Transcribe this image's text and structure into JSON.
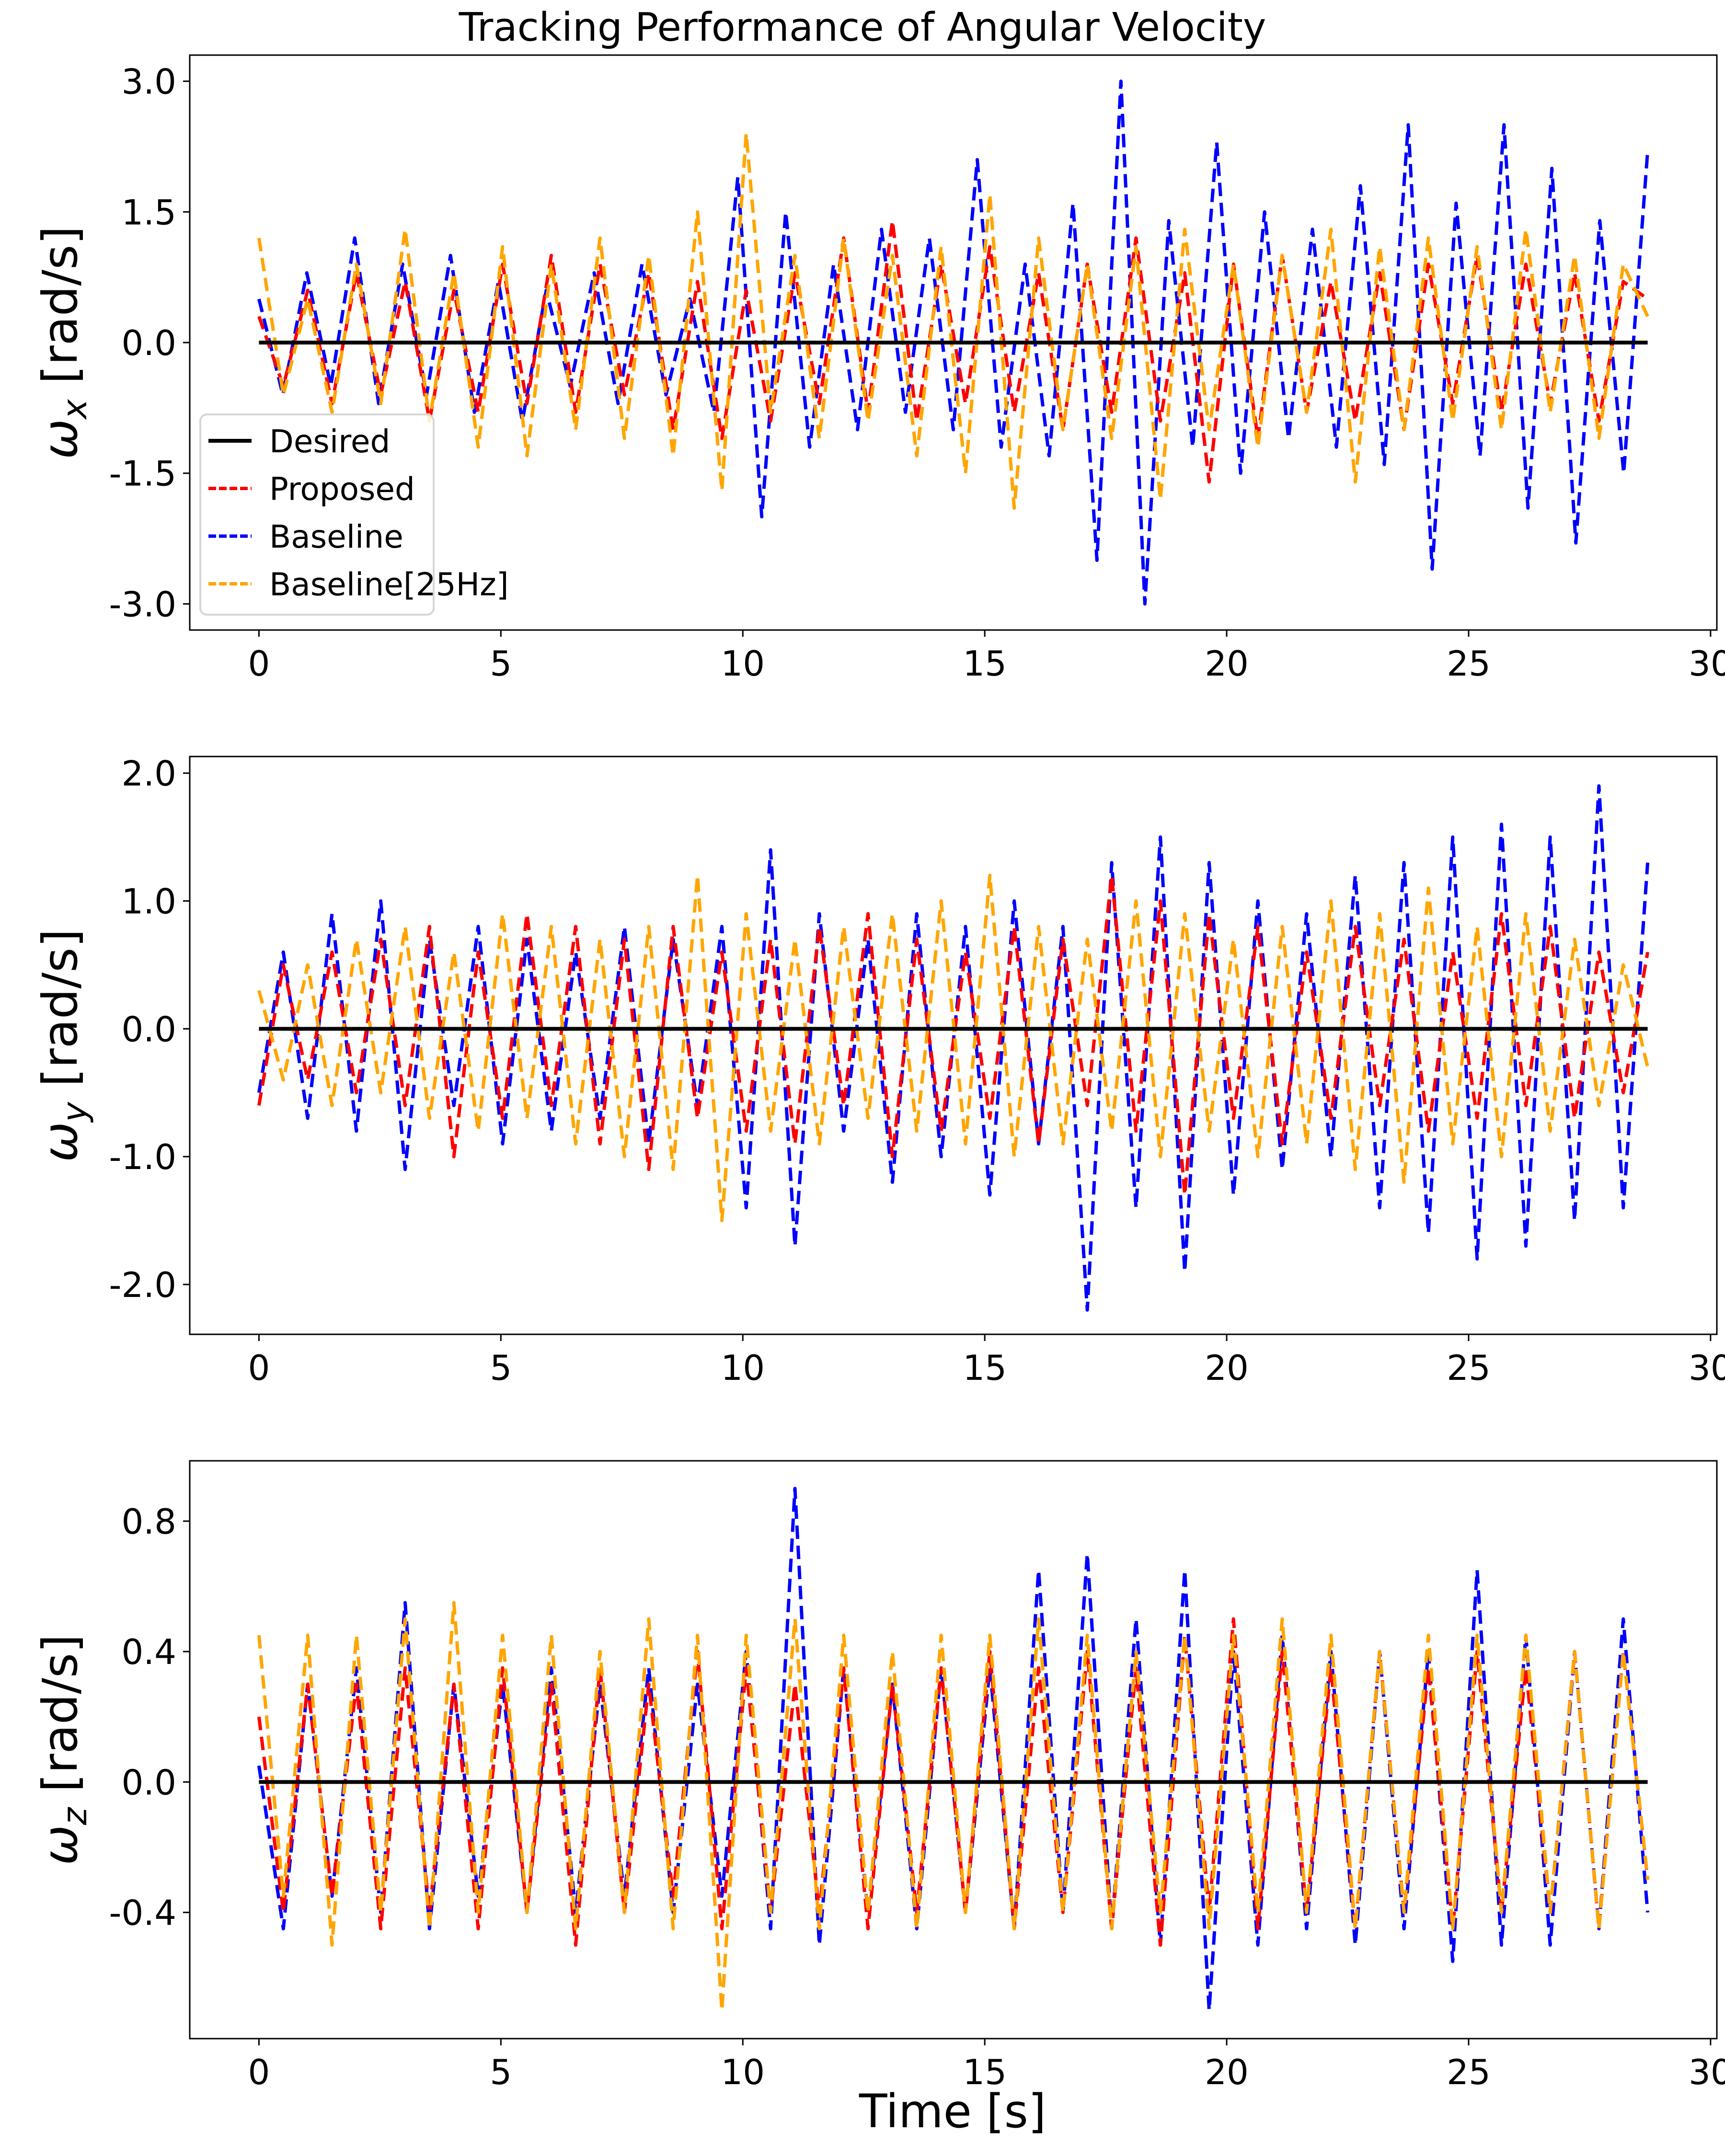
{
  "chart_data": {
    "type": "line",
    "title": "Tracking Performance of Angular Velocity",
    "xlabel": "Time [s]",
    "x_step": 0.5,
    "x_start": 0,
    "xlim": [
      -1.43,
      30.13
    ],
    "xticks": [
      0,
      5,
      10,
      15,
      20,
      25,
      30
    ],
    "grid": false,
    "legend": {
      "placement": "lower-left of first subplot",
      "entries": [
        "Desired",
        "Proposed",
        "Baseline",
        "Baseline[25Hz]"
      ]
    },
    "colors": {
      "Desired": "#000000",
      "Proposed": "#ff0000",
      "Baseline": "#0000ff",
      "Baseline[25Hz]": "#ffa500"
    },
    "subplots": [
      {
        "ylabel": "ω_x [rad/s]",
        "ylabel_main": "ω",
        "ylabel_sub": "x",
        "ylabel_unit": " [rad/s]",
        "ylim": [
          -3.3,
          3.3
        ],
        "yticks": [
          3.0,
          1.5,
          0.0,
          -1.5,
          -3.0
        ],
        "ytick_labels": [
          "3.0",
          "1.5",
          "0.0",
          "-1.5",
          "-3.0"
        ],
        "series": [
          {
            "name": "Desired",
            "values": [
              0,
              0
            ]
          },
          {
            "name": "Proposed",
            "values": [
              0.3,
              -0.5,
              0.6,
              -0.7,
              0.8,
              -0.6,
              0.7,
              -0.9,
              0.6,
              -0.8,
              0.9,
              -0.7,
              1.0,
              -0.8,
              0.9,
              -0.6,
              0.8,
              -1.0,
              0.7,
              -1.1,
              0.6,
              -0.9,
              0.8,
              -0.7,
              1.2,
              -0.8,
              1.4,
              -0.9,
              0.9,
              -0.7,
              1.1,
              -0.8,
              0.8,
              -1.0,
              0.9,
              -0.8,
              1.2,
              -0.9,
              0.8,
              -1.6,
              0.9,
              -1.1,
              1.0,
              -0.8,
              0.7,
              -0.9,
              0.8,
              -1.0,
              0.9,
              -0.7,
              1.0,
              -0.8,
              0.9,
              -0.7,
              0.8,
              -0.9,
              0.7,
              0.5
            ]
          },
          {
            "name": "Baseline",
            "values": [
              0.5,
              -0.6,
              0.8,
              -0.5,
              1.2,
              -0.7,
              0.9,
              -0.6,
              1.0,
              -0.8,
              0.7,
              -0.9,
              0.6,
              -0.5,
              0.8,
              -0.7,
              0.9,
              -0.6,
              0.5,
              -0.8,
              1.9,
              -2.0,
              1.5,
              -1.2,
              0.9,
              -1.0,
              1.3,
              -0.8,
              1.2,
              -1.0,
              2.1,
              -1.2,
              0.9,
              -1.3,
              1.6,
              -2.5,
              3.0,
              -3.0,
              1.4,
              -1.2,
              2.3,
              -1.5,
              1.5,
              -1.1,
              1.3,
              -1.2,
              1.8,
              -1.4,
              2.5,
              -2.6,
              1.6,
              -1.3,
              2.5,
              -1.9,
              2.0,
              -2.3,
              1.4,
              -1.5,
              2.2
            ]
          },
          {
            "name": "Baseline[25Hz]",
            "values": [
              1.2,
              -0.6,
              0.5,
              -0.8,
              0.9,
              -0.7,
              1.3,
              -0.9,
              0.8,
              -1.2,
              1.1,
              -1.3,
              0.9,
              -1.0,
              1.2,
              -1.1,
              1.0,
              -1.3,
              1.5,
              -1.7,
              2.4,
              -0.8,
              1.0,
              -1.1,
              1.2,
              -0.9,
              1.0,
              -1.3,
              1.1,
              -1.5,
              1.7,
              -1.9,
              1.2,
              -1.0,
              0.9,
              -1.1,
              1.1,
              -1.8,
              1.3,
              -1.0,
              0.9,
              -1.2,
              1.0,
              -0.8,
              1.3,
              -1.6,
              1.1,
              -1.0,
              1.2,
              -0.9,
              1.1,
              -1.0,
              1.3,
              -0.8,
              1.0,
              -1.1,
              0.9,
              0.3
            ]
          }
        ]
      },
      {
        "ylabel": "ω_y [rad/s]",
        "ylabel_main": "ω",
        "ylabel_sub": "y",
        "ylabel_unit": " [rad/s]",
        "ylim": [
          -2.39,
          2.13
        ],
        "yticks": [
          2.0,
          1.0,
          0.0,
          -1.0,
          -2.0
        ],
        "ytick_labels": [
          "2.0",
          "1.0",
          "0.0",
          "-1.0",
          "-2.0"
        ],
        "series": [
          {
            "name": "Desired",
            "values": [
              0,
              0
            ]
          },
          {
            "name": "Proposed",
            "values": [
              -0.6,
              0.5,
              -0.4,
              0.6,
              -0.5,
              0.7,
              -0.6,
              0.8,
              -1.0,
              0.6,
              -0.7,
              0.9,
              -0.6,
              0.8,
              -0.9,
              0.7,
              -1.1,
              0.8,
              -0.7,
              0.6,
              -0.8,
              0.7,
              -0.9,
              0.8,
              -0.6,
              0.9,
              -1.0,
              0.7,
              -0.8,
              0.6,
              -0.7,
              0.8,
              -0.9,
              0.7,
              -0.6,
              1.2,
              -0.8,
              1.0,
              -1.3,
              0.9,
              -0.7,
              0.8,
              -0.9,
              0.6,
              -0.7,
              0.8,
              -0.6,
              0.7,
              -0.8,
              0.6,
              -0.7,
              0.9,
              -0.6,
              0.8,
              -0.7,
              0.6,
              -0.5,
              0.6
            ]
          },
          {
            "name": "Baseline",
            "values": [
              -0.5,
              0.6,
              -0.7,
              0.9,
              -0.8,
              1.0,
              -1.1,
              0.7,
              -0.6,
              0.8,
              -0.9,
              0.7,
              -0.8,
              0.6,
              -0.7,
              0.8,
              -0.9,
              0.7,
              -0.6,
              0.8,
              -1.4,
              1.4,
              -1.7,
              0.9,
              -0.8,
              0.7,
              -1.2,
              0.9,
              -1.0,
              0.8,
              -1.3,
              1.0,
              -0.9,
              0.8,
              -2.2,
              1.3,
              -1.4,
              1.5,
              -1.9,
              1.3,
              -1.3,
              1.0,
              -1.1,
              0.9,
              -1.0,
              1.2,
              -1.4,
              1.3,
              -1.6,
              1.5,
              -1.8,
              1.6,
              -1.7,
              1.5,
              -1.5,
              1.9,
              -1.4,
              1.3
            ]
          },
          {
            "name": "Baseline[25Hz]",
            "values": [
              0.3,
              -0.4,
              0.5,
              -0.6,
              0.7,
              -0.5,
              0.8,
              -0.7,
              0.6,
              -0.8,
              0.9,
              -0.7,
              0.8,
              -0.9,
              0.7,
              -1.0,
              0.8,
              -1.1,
              1.2,
              -1.5,
              0.9,
              -0.8,
              0.7,
              -0.9,
              0.8,
              -0.7,
              0.9,
              -0.8,
              1.0,
              -0.9,
              1.2,
              -1.0,
              0.8,
              -0.9,
              0.7,
              -0.8,
              1.0,
              -1.0,
              0.9,
              -0.8,
              0.7,
              -1.0,
              0.8,
              -0.9,
              1.0,
              -1.1,
              0.9,
              -1.2,
              1.1,
              -0.9,
              0.8,
              -1.0,
              0.9,
              -0.8,
              0.7,
              -0.6,
              0.5,
              -0.3
            ]
          }
        ]
      },
      {
        "ylabel": "ω_z [rad/s]",
        "ylabel_main": "ω",
        "ylabel_sub": "z",
        "ylabel_unit": " [rad/s]",
        "ylim": [
          -0.787,
          0.985
        ],
        "yticks": [
          0.8,
          0.4,
          0.0,
          -0.4
        ],
        "ytick_labels": [
          "0.8",
          "0.4",
          "0.0",
          "-0.4"
        ],
        "series": [
          {
            "name": "Desired",
            "values": [
              0,
              0
            ]
          },
          {
            "name": "Proposed",
            "values": [
              0.2,
              -0.4,
              0.3,
              -0.35,
              0.3,
              -0.45,
              0.35,
              -0.4,
              0.3,
              -0.45,
              0.35,
              -0.4,
              0.3,
              -0.5,
              0.35,
              -0.4,
              0.3,
              -0.35,
              0.4,
              -0.45,
              0.35,
              -0.4,
              0.3,
              -0.4,
              0.35,
              -0.45,
              0.3,
              -0.4,
              0.35,
              -0.4,
              0.4,
              -0.45,
              0.35,
              -0.4,
              0.4,
              -0.45,
              0.35,
              -0.5,
              0.45,
              -0.4,
              0.5,
              -0.45,
              0.4,
              -0.4,
              0.35,
              -0.45,
              0.4,
              -0.4,
              0.35,
              -0.45,
              0.4,
              -0.4,
              0.35,
              -0.4,
              0.4,
              -0.45,
              0.4,
              -0.3
            ]
          },
          {
            "name": "Baseline",
            "values": [
              0.05,
              -0.45,
              0.3,
              -0.35,
              0.35,
              -0.4,
              0.55,
              -0.45,
              0.3,
              -0.35,
              0.3,
              -0.4,
              0.35,
              -0.4,
              0.3,
              -0.35,
              0.35,
              -0.4,
              0.3,
              -0.35,
              0.4,
              -0.45,
              0.9,
              -0.5,
              0.35,
              -0.4,
              0.3,
              -0.45,
              0.35,
              -0.4,
              0.35,
              -0.45,
              0.65,
              -0.4,
              0.7,
              -0.45,
              0.5,
              -0.5,
              0.65,
              -0.7,
              0.4,
              -0.5,
              0.45,
              -0.45,
              0.4,
              -0.5,
              0.4,
              -0.45,
              0.4,
              -0.55,
              0.65,
              -0.5,
              0.45,
              -0.5,
              0.4,
              -0.45,
              0.5,
              -0.4
            ]
          },
          {
            "name": "Baseline[25Hz]",
            "values": [
              0.45,
              -0.35,
              0.45,
              -0.5,
              0.45,
              -0.4,
              0.5,
              -0.45,
              0.55,
              -0.4,
              0.45,
              -0.4,
              0.45,
              -0.45,
              0.4,
              -0.4,
              0.5,
              -0.45,
              0.45,
              -0.7,
              0.45,
              -0.4,
              0.5,
              -0.45,
              0.45,
              -0.4,
              0.4,
              -0.45,
              0.45,
              -0.4,
              0.45,
              -0.45,
              0.5,
              -0.4,
              0.45,
              -0.45,
              0.4,
              -0.4,
              0.45,
              -0.45,
              0.45,
              -0.4,
              0.5,
              -0.4,
              0.45,
              -0.45,
              0.4,
              -0.4,
              0.45,
              -0.45,
              0.45,
              -0.4,
              0.45,
              -0.4,
              0.4,
              -0.45,
              0.4,
              -0.3
            ]
          }
        ]
      }
    ]
  }
}
